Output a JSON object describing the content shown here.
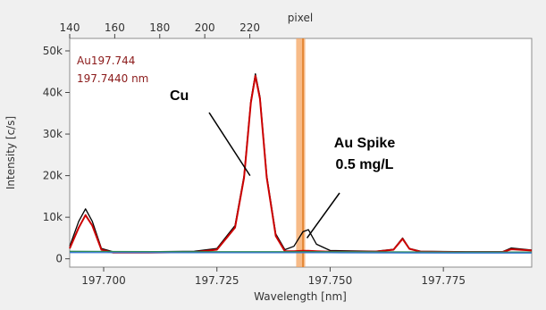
{
  "chart_data": {
    "type": "line",
    "title": "",
    "xlabel": "Wavelength [nm]",
    "ylabel": "Intensity [c/s]",
    "top_axis_label": "pixel",
    "xlim": [
      197.6925,
      197.7945
    ],
    "ylim": [
      -2000,
      53000
    ],
    "x_ticks": [
      197.7,
      197.725,
      197.75,
      197.775
    ],
    "x_tick_labels": [
      "197.700",
      "197.725",
      "197.750",
      "197.775"
    ],
    "y_ticks": [
      0,
      10000,
      20000,
      30000,
      40000,
      50000
    ],
    "y_tick_labels": [
      "0",
      "10k",
      "20k",
      "30k",
      "40k",
      "50k"
    ],
    "top_ticks": [
      140,
      160,
      180,
      200,
      220
    ],
    "top_tick_labels": [
      "140",
      "160",
      "180",
      "200",
      "220"
    ],
    "highlight_band": {
      "x": [
        197.7425,
        197.7445
      ],
      "center": 197.744,
      "color": "#f4a460"
    },
    "peak_label": {
      "line1": "Au197.744",
      "line2": "197.7440 nm"
    },
    "annotations": [
      {
        "text_lines": [
          "Cu"
        ],
        "target_x": 197.7335,
        "target_y": 20000
      },
      {
        "text_lines": [
          "Au Spike",
          "0.5 mg/L"
        ],
        "target_x": 197.7445,
        "target_y": 5000
      }
    ],
    "series": [
      {
        "color": "#000000",
        "points": [
          [
            197.6925,
            3000
          ],
          [
            197.6945,
            9000
          ],
          [
            197.696,
            12000
          ],
          [
            197.6975,
            9000
          ],
          [
            197.6995,
            2500
          ],
          [
            197.702,
            1700
          ],
          [
            197.71,
            1700
          ],
          [
            197.72,
            1800
          ],
          [
            197.725,
            2500
          ],
          [
            197.729,
            8000
          ],
          [
            197.731,
            20000
          ],
          [
            197.7325,
            38000
          ],
          [
            197.7335,
            44500
          ],
          [
            197.7345,
            39000
          ],
          [
            197.736,
            20000
          ],
          [
            197.738,
            6000
          ],
          [
            197.74,
            2200
          ],
          [
            197.742,
            3000
          ],
          [
            197.744,
            6500
          ],
          [
            197.7452,
            7000
          ],
          [
            197.747,
            3500
          ],
          [
            197.75,
            2000
          ],
          [
            197.76,
            1800
          ],
          [
            197.764,
            2300
          ],
          [
            197.766,
            5000
          ],
          [
            197.7675,
            2500
          ],
          [
            197.77,
            1800
          ],
          [
            197.78,
            1700
          ],
          [
            197.788,
            1700
          ],
          [
            197.79,
            2600
          ],
          [
            197.7945,
            2100
          ]
        ]
      },
      {
        "color": "#cc0000",
        "points": [
          [
            197.6925,
            2500
          ],
          [
            197.6945,
            7500
          ],
          [
            197.696,
            10500
          ],
          [
            197.6975,
            8000
          ],
          [
            197.6995,
            2200
          ],
          [
            197.702,
            1500
          ],
          [
            197.71,
            1500
          ],
          [
            197.72,
            1600
          ],
          [
            197.725,
            2200
          ],
          [
            197.729,
            7500
          ],
          [
            197.731,
            19500
          ],
          [
            197.7325,
            37500
          ],
          [
            197.7335,
            44000
          ],
          [
            197.7345,
            38500
          ],
          [
            197.736,
            19500
          ],
          [
            197.738,
            5500
          ],
          [
            197.74,
            1800
          ],
          [
            197.742,
            1800
          ],
          [
            197.744,
            1900
          ],
          [
            197.7452,
            1900
          ],
          [
            197.747,
            1800
          ],
          [
            197.75,
            1700
          ],
          [
            197.76,
            1700
          ],
          [
            197.764,
            2200
          ],
          [
            197.766,
            4800
          ],
          [
            197.7675,
            2400
          ],
          [
            197.77,
            1700
          ],
          [
            197.78,
            1600
          ],
          [
            197.788,
            1600
          ],
          [
            197.79,
            2300
          ],
          [
            197.7945,
            2000
          ]
        ]
      },
      {
        "color": "#2e8b57",
        "points": [
          [
            197.6925,
            1800
          ],
          [
            197.72,
            1700
          ],
          [
            197.75,
            1700
          ],
          [
            197.78,
            1600
          ],
          [
            197.7945,
            1600
          ]
        ]
      },
      {
        "color": "#3a7bd5",
        "points": [
          [
            197.6925,
            1500
          ],
          [
            197.72,
            1450
          ],
          [
            197.75,
            1450
          ],
          [
            197.78,
            1400
          ],
          [
            197.7945,
            1400
          ]
        ]
      }
    ]
  }
}
